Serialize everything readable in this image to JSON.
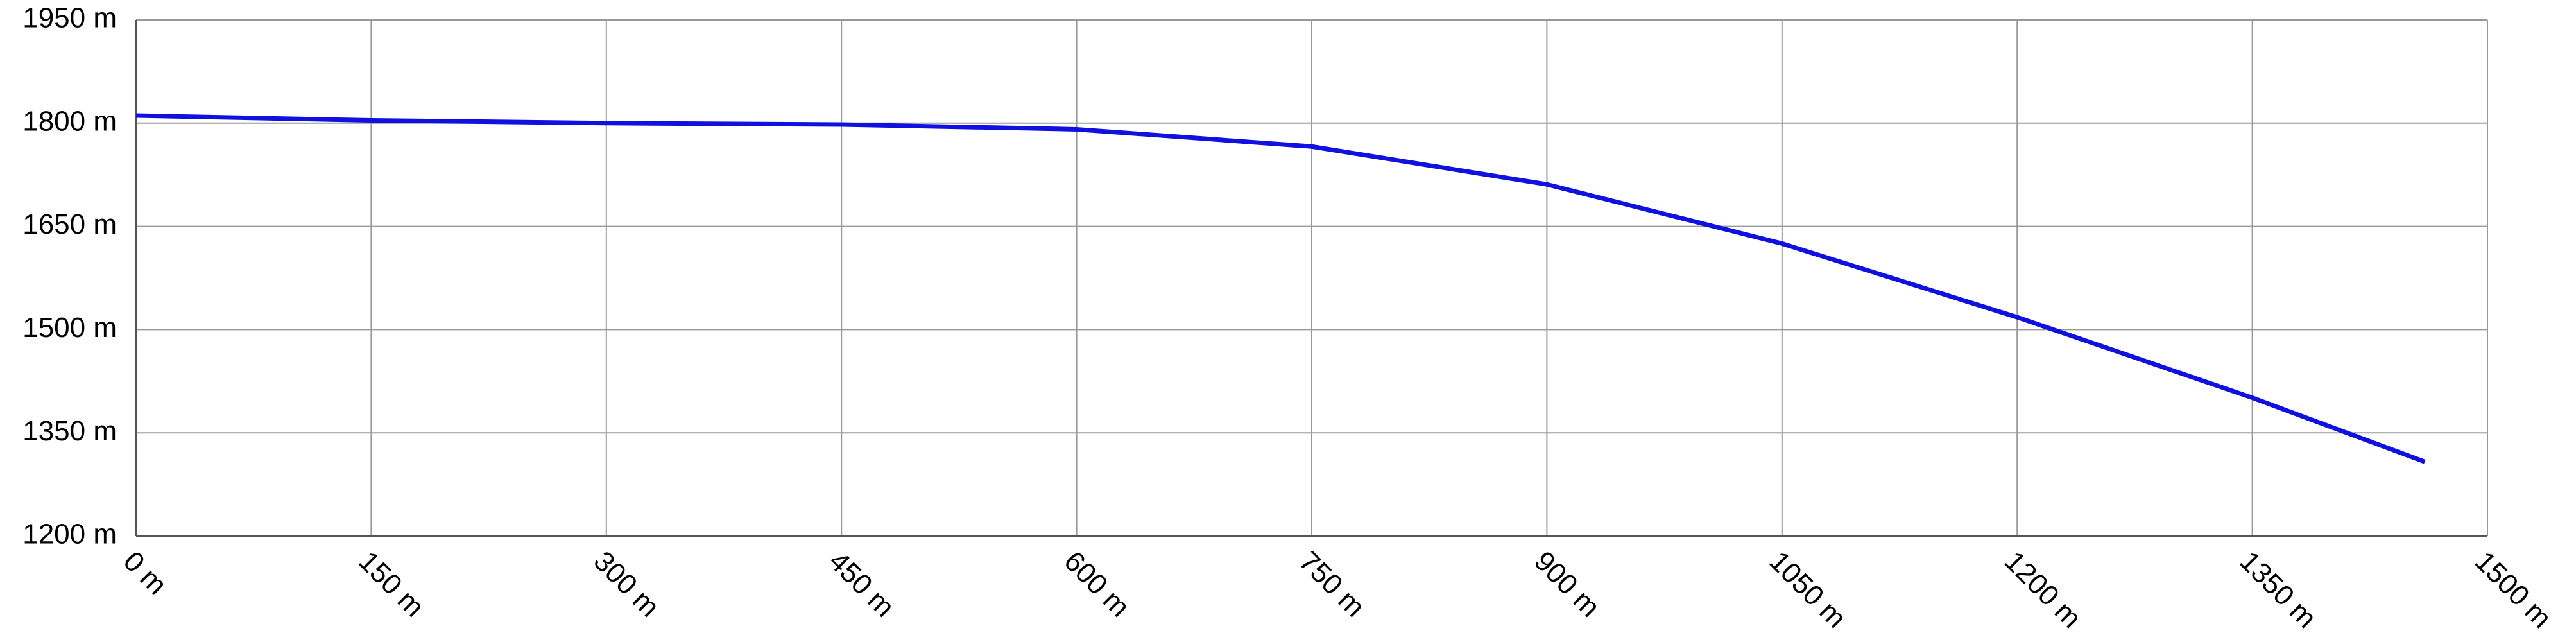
{
  "chart_data": {
    "type": "line",
    "x": [
      0,
      150,
      300,
      450,
      600,
      750,
      900,
      1050,
      1200,
      1350,
      1460
    ],
    "series": [
      {
        "color": "#1010e0",
        "values": [
          1811,
          1804,
          1800,
          1798,
          1791,
          1766,
          1711,
          1625,
          1518,
          1401,
          1308
        ]
      }
    ],
    "xlim": [
      0,
      1500
    ],
    "xticks": [
      {
        "value": 0,
        "label": "0 m"
      },
      {
        "value": 150,
        "label": "150 m"
      },
      {
        "value": 300,
        "label": "300 m"
      },
      {
        "value": 450,
        "label": "450 m"
      },
      {
        "value": 600,
        "label": "600 m"
      },
      {
        "value": 750,
        "label": "750 m"
      },
      {
        "value": 900,
        "label": "900 m"
      },
      {
        "value": 1050,
        "label": "1050 m"
      },
      {
        "value": 1200,
        "label": "1200 m"
      },
      {
        "value": 1350,
        "label": "1350 m"
      },
      {
        "value": 1500,
        "label": "1500 m"
      }
    ],
    "ylim": [
      1200,
      1950
    ],
    "yticks": [
      {
        "value": 1200,
        "label": "1200 m"
      },
      {
        "value": 1350,
        "label": "1350 m"
      },
      {
        "value": 1500,
        "label": "1500 m"
      },
      {
        "value": 1650,
        "label": "1650 m"
      },
      {
        "value": 1800,
        "label": "1800 m"
      },
      {
        "value": 1950,
        "label": "1950 m"
      }
    ],
    "grid": true
  }
}
